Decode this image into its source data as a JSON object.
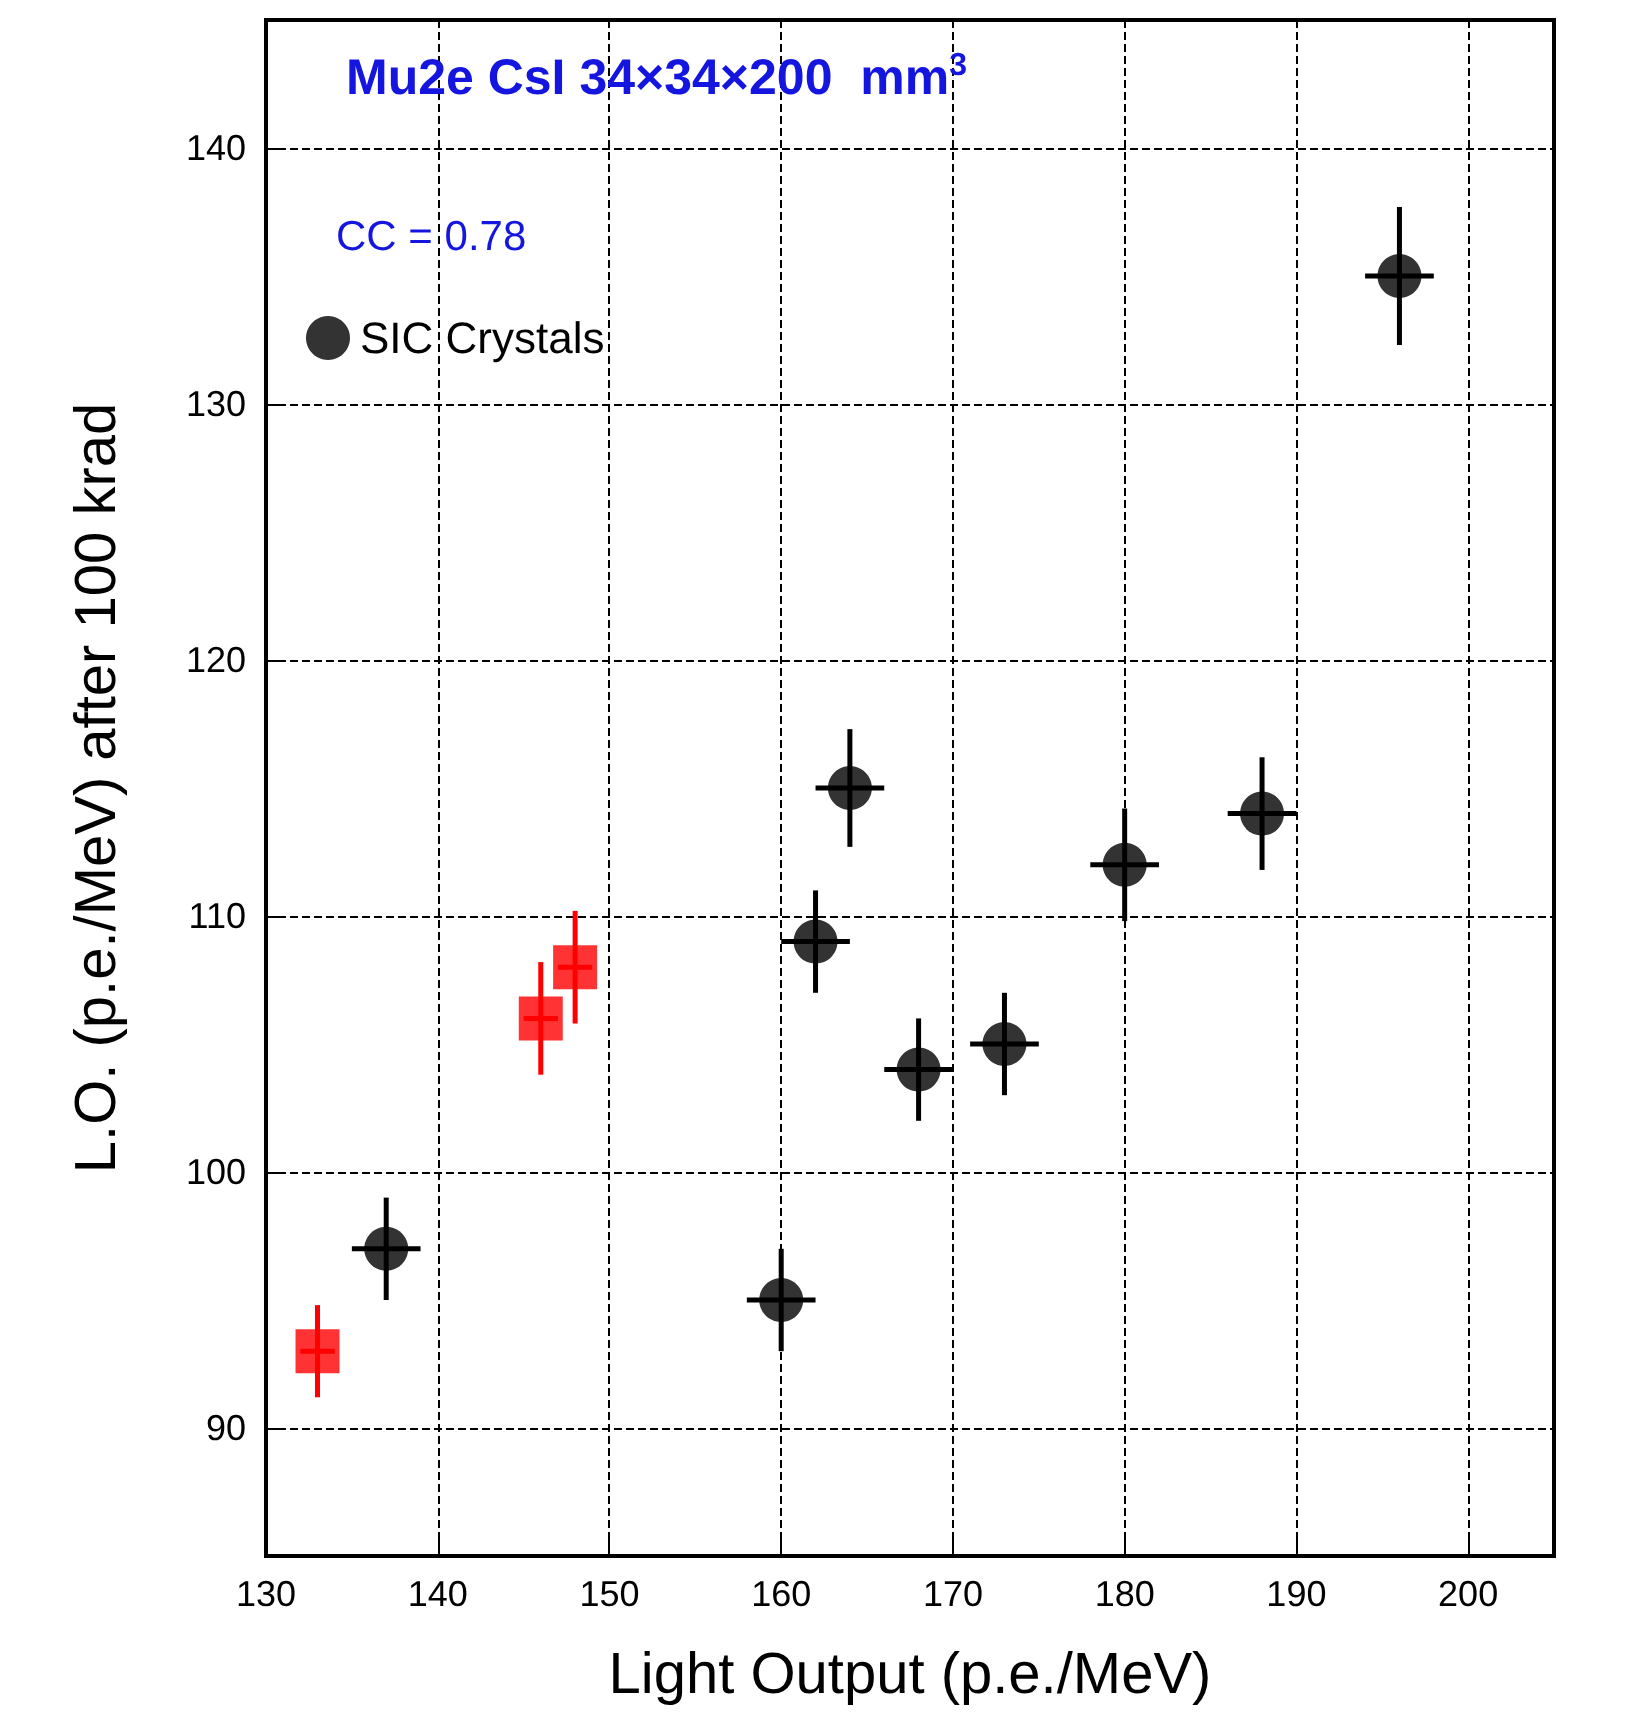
{
  "chart_data": {
    "type": "scatter",
    "title": "Mu2e CsI 34×34×200  mm$^{3}$",
    "annotations": [
      "CC = 0.78"
    ],
    "xlabel": "Light Output (p.e./MeV)",
    "ylabel": "L.O. (p.e./MeV) after 100 krad",
    "xlim": [
      130,
      205
    ],
    "xticks": [
      130,
      140,
      150,
      160,
      170,
      180,
      190,
      200
    ],
    "ylim": [
      85,
      145
    ],
    "yticks": [
      90,
      100,
      110,
      120,
      130,
      140
    ],
    "grid": true,
    "legend": "top left",
    "series": [
      {
        "name": "SIC Crystals",
        "color": "#000000",
        "marker": "circle",
        "x": [
          137,
          160,
          162,
          164,
          168,
          173,
          180,
          188,
          196
        ],
        "values": [
          97,
          95,
          109,
          115,
          104,
          105,
          112,
          114,
          135
        ],
        "errors": [
          2,
          2,
          2,
          2.3,
          2,
          2,
          2.2,
          2.2,
          2.7
        ],
        "xerrors": [
          2,
          2,
          2,
          2,
          2,
          2,
          2,
          2,
          2
        ]
      },
      {
        "color": "#ff0000",
        "marker": "square",
        "x": [
          133,
          146,
          148
        ],
        "values": [
          93,
          106,
          108
        ],
        "errors": [
          1.8,
          2.2,
          2.2
        ],
        "xerrors": [
          1,
          1,
          1
        ]
      }
    ]
  }
}
